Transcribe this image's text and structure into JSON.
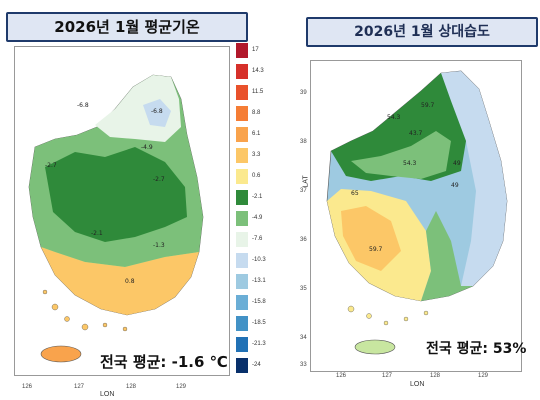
{
  "left": {
    "title": "2026년 1월 평균기온",
    "statistic": "전국 평균: -1.6 ℃",
    "x_axis_label": "LON",
    "x_ticks": [
      "126",
      "127",
      "128",
      "129"
    ],
    "contour_labels": [
      "-6.8",
      "-6.8",
      "-4.9",
      "-2.7",
      "-2.1",
      "-1.3",
      "0.8",
      "-2.7"
    ],
    "legend": [
      {
        "label": "17",
        "color": "#b2182b"
      },
      {
        "label": "14.3",
        "color": "#d6302a"
      },
      {
        "label": "11.5",
        "color": "#e9512b"
      },
      {
        "label": "8.8",
        "color": "#f57d35"
      },
      {
        "label": "6.1",
        "color": "#f9a34c"
      },
      {
        "label": "3.3",
        "color": "#fcc767"
      },
      {
        "label": "0.6",
        "color": "#fbe98e"
      },
      {
        "label": "-2.1",
        "color": "#2f8a3a"
      },
      {
        "label": "-4.9",
        "color": "#7cc07a"
      },
      {
        "label": "-7.6",
        "color": "#e8f4e8"
      },
      {
        "label": "-10.3",
        "color": "#c6dbef"
      },
      {
        "label": "-13.1",
        "color": "#9ecae1"
      },
      {
        "label": "-15.8",
        "color": "#6baed6"
      },
      {
        "label": "-18.5",
        "color": "#4292c6"
      },
      {
        "label": "-21.3",
        "color": "#2171b5"
      },
      {
        "label": "-24",
        "color": "#08306b"
      }
    ]
  },
  "right": {
    "title": "2026년 1월 상대습도",
    "statistic": "전국 평균: 53%",
    "x_axis_label": "LON",
    "y_axis_label": "LAT",
    "x_ticks": [
      "126",
      "127",
      "128",
      "129"
    ],
    "y_ticks": [
      "39",
      "38",
      "37",
      "36",
      "35",
      "34",
      "33"
    ],
    "contour_labels": [
      "54.3",
      "59.7",
      "49",
      "65",
      "59.7",
      "43.7",
      "49",
      "54.3"
    ]
  },
  "colors": {
    "title_bg": "#dfe6f3",
    "title_border": "#1f3a6b",
    "sea": "#ffffff"
  }
}
